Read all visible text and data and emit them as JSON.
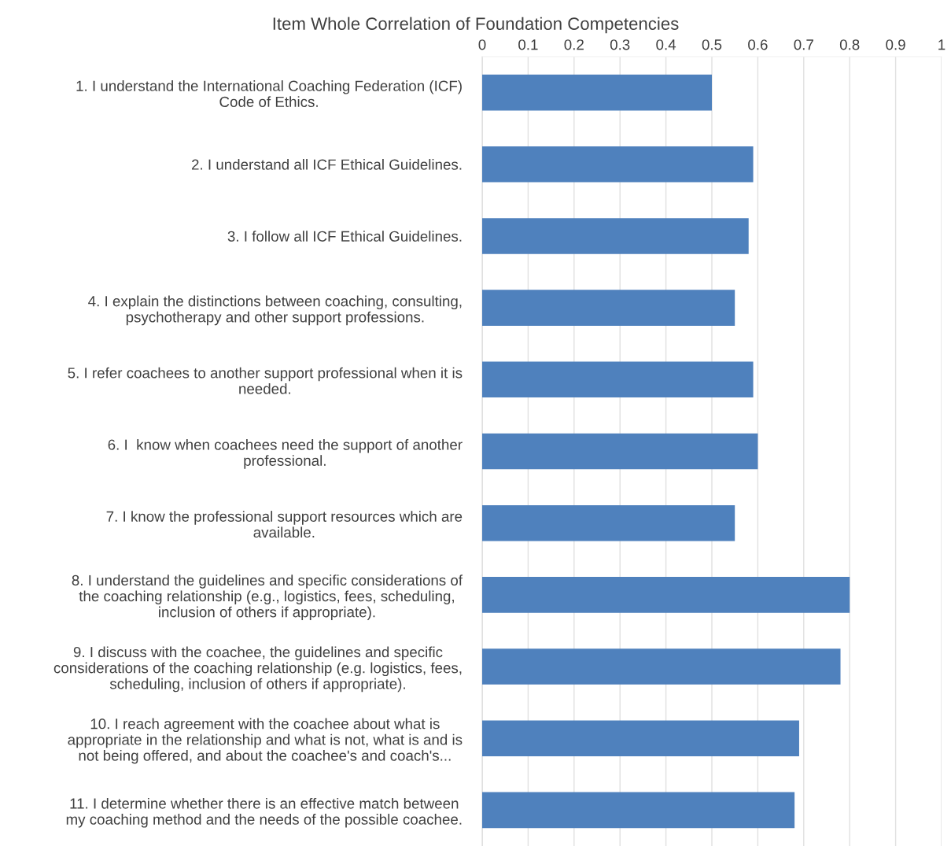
{
  "chart_data": {
    "type": "bar",
    "orientation": "horizontal",
    "title": "Item Whole Correlation of Foundation Competencies",
    "categories": [
      "1. I understand the International Coaching Federation (ICF)\nCode of Ethics.",
      "2. I understand all ICF Ethical Guidelines.",
      "3. I follow all ICF Ethical Guidelines.",
      "4. I explain the distinctions between coaching, consulting,\npsychotherapy and other support professions.",
      "5. I refer coachees to another support professional when it is\nneeded.",
      "6. I  know when coachees need the support of another\nprofessional.",
      "7. I know the professional support resources which are\navailable.",
      "8. I understand the guidelines and specific considerations of\nthe coaching relationship (e.g., logistics, fees, scheduling,\ninclusion of others if appropriate).",
      "9. I discuss with the coachee, the guidelines and specific\nconsiderations of the coaching relationship (e.g. logistics, fees,\nscheduling, inclusion of others if appropriate).",
      "10. I reach agreement with the coachee about what is\nappropriate in the relationship and what is not, what is and is\nnot being offered, and about the coachee's and coach's...",
      "11. I determine whether there is an effective match between\nmy coaching method and the needs of the possible coachee."
    ],
    "values": [
      0.5,
      0.59,
      0.58,
      0.55,
      0.59,
      0.6,
      0.55,
      0.8,
      0.78,
      0.69,
      0.68
    ],
    "color": "#4f81bd",
    "xlim": [
      0,
      1
    ],
    "xticks": [
      0,
      0.1,
      0.2,
      0.3,
      0.4,
      0.5,
      0.6,
      0.7,
      0.8,
      0.9,
      1
    ],
    "grid": "x",
    "legend": false
  }
}
